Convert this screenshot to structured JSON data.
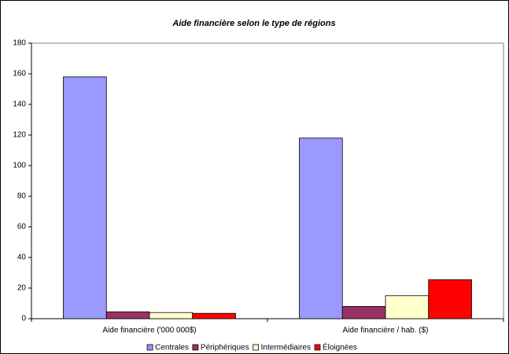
{
  "chart_data": {
    "type": "bar",
    "title": "Aide financière selon le type de régions",
    "categories": [
      "Aide financière ('000 000$)",
      "Aide financière / hab. ($)"
    ],
    "series": [
      {
        "name": "Centrales",
        "color": "#9999ff",
        "values": [
          158,
          118
        ]
      },
      {
        "name": "Périphériques",
        "color": "#993366",
        "values": [
          4.5,
          8
        ]
      },
      {
        "name": "Intermédiaires",
        "color": "#ffffcc",
        "values": [
          4,
          15
        ]
      },
      {
        "name": "Éloignées",
        "color": "#ff0000",
        "values": [
          3.5,
          25.5
        ]
      }
    ],
    "ylim": [
      0,
      180
    ],
    "yticks": [
      0,
      20,
      40,
      60,
      80,
      100,
      120,
      140,
      160,
      180
    ],
    "grid": false,
    "legend": "bottom"
  }
}
